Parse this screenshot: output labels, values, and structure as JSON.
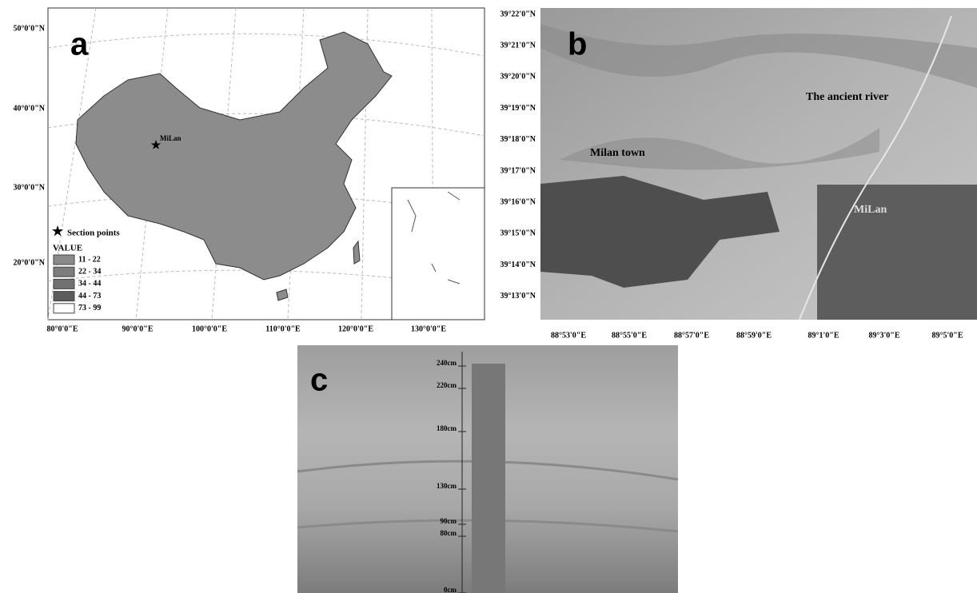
{
  "panel_a": {
    "letter": "a",
    "lat_labels": [
      "50°0'0\"N",
      "40°0'0\"N",
      "30°0'0\"N",
      "20°0'0\"N"
    ],
    "lon_labels": [
      "80°0'0\"E",
      "90°0'0\"E",
      "100°0'0\"E",
      "110°0'0\"E",
      "120°0'0\"E",
      "130°0'0\"E"
    ],
    "place_label": "MiLan",
    "legend": {
      "marker_label": "Section points",
      "title": "VALUE",
      "classes": [
        "11 - 22",
        "22 - 34",
        "34 - 44",
        "44 - 73",
        "73 - 99"
      ]
    }
  },
  "panel_b": {
    "letter": "b",
    "lat_labels": [
      "39°22'0\"N",
      "39°21'0\"N",
      "39°20'0\"N",
      "39°19'0\"N",
      "39°18'0\"N",
      "39°17'0\"N",
      "39°16'0\"N",
      "39°15'0\"N",
      "39°14'0\"N",
      "39°13'0\"N"
    ],
    "lon_labels": [
      "88°53'0\"E",
      "88°55'0\"E",
      "88°57'0\"E",
      "88°59'0\"E",
      "89°1'0\"E",
      "89°3'0\"E",
      "89°5'0\"E"
    ],
    "place_labels": [
      "Milan town",
      "The ancient river",
      "MiLan"
    ]
  },
  "panel_c": {
    "letter": "c",
    "depth_labels": [
      "240cm",
      "220cm",
      "180cm",
      "130cm",
      "90cm",
      "80cm",
      "0cm"
    ]
  }
}
